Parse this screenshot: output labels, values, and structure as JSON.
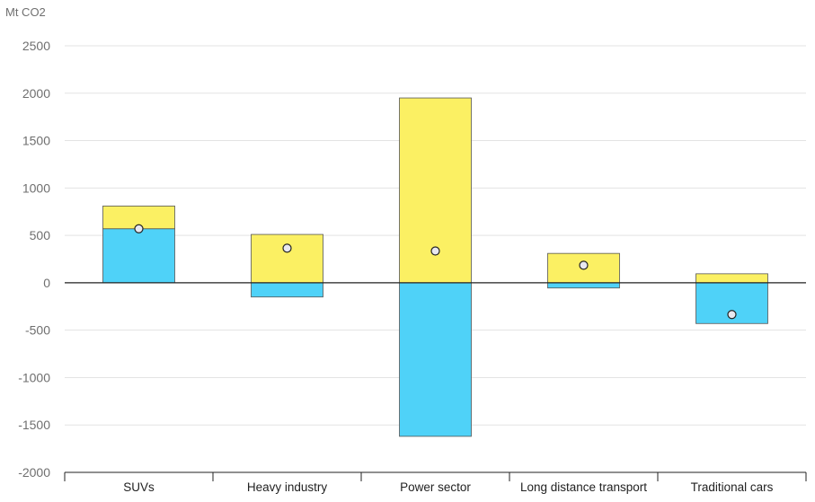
{
  "chart_data": {
    "type": "bar",
    "stacked": "diverging",
    "unit_label": "Mt CO2",
    "title": "",
    "xlabel": "",
    "ylabel": "Mt CO2",
    "ylim": [
      -2000,
      2500
    ],
    "yticks": [
      2500,
      2000,
      1500,
      1000,
      500,
      0,
      -500,
      -1000,
      -1500,
      -2000
    ],
    "grid": true,
    "legend": "none",
    "categories": [
      "SUVs",
      "Heavy industry",
      "Power sector",
      "Long distance transport",
      "Traditional cars"
    ],
    "series": [
      {
        "color": "#4fd2f8",
        "values": [
          570,
          -150,
          -1620,
          -55,
          -430
        ]
      },
      {
        "color": "#fbf063",
        "values": [
          240,
          510,
          1950,
          310,
          95
        ]
      }
    ],
    "markers": {
      "values": [
        570,
        365,
        335,
        185,
        -335
      ],
      "fill": "#e8e8f0"
    }
  }
}
